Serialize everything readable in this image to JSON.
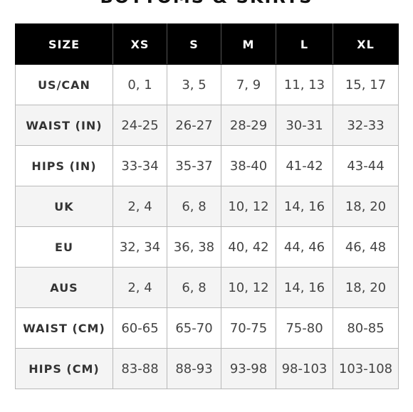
{
  "page": {
    "heading": "BOTTOMS & SKIRTS"
  },
  "table": {
    "headers": [
      "SIZE",
      "XS",
      "S",
      "M",
      "L",
      "XL"
    ],
    "rows": [
      {
        "label": "US/CAN",
        "values": [
          "0, 1",
          "3, 5",
          "7, 9",
          "11, 13",
          "15, 17"
        ]
      },
      {
        "label": "WAIST (IN)",
        "values": [
          "24-25",
          "26-27",
          "28-29",
          "30-31",
          "32-33"
        ]
      },
      {
        "label": "HIPS (IN)",
        "values": [
          "33-34",
          "35-37",
          "38-40",
          "41-42",
          "43-44"
        ]
      },
      {
        "label": "UK",
        "values": [
          "2, 4",
          "6, 8",
          "10, 12",
          "14, 16",
          "18, 20"
        ]
      },
      {
        "label": "EU",
        "values": [
          "32, 34",
          "36, 38",
          "40, 42",
          "44, 46",
          "46, 48"
        ]
      },
      {
        "label": "AUS",
        "values": [
          "2, 4",
          "6, 8",
          "10, 12",
          "14, 16",
          "18, 20"
        ]
      },
      {
        "label": "WAIST (CM)",
        "values": [
          "60-65",
          "65-70",
          "70-75",
          "75-80",
          "80-85"
        ]
      },
      {
        "label": "HIPS (CM)",
        "values": [
          "83-88",
          "88-93",
          "93-98",
          "98-103",
          "103-108"
        ]
      }
    ]
  },
  "colors": {
    "header_background": "#000000",
    "header_text": "#ffffff",
    "alternate_row_background": "#f4f4f4",
    "border": "#b9b9b9"
  }
}
